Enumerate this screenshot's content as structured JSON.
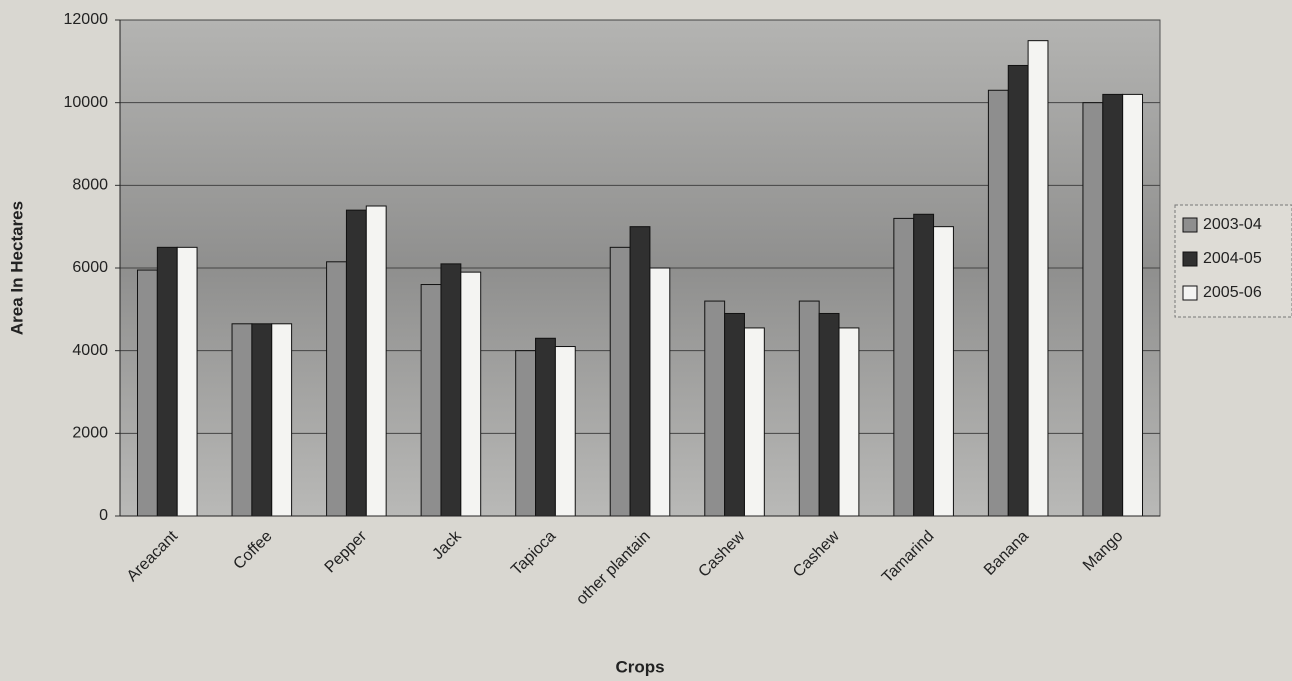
{
  "chart_data": {
    "type": "bar",
    "categories": [
      "Areacant",
      "Coffee",
      "Pepper",
      "Jack",
      "Tapioca",
      "other plantain",
      "Cashew",
      "Cashew",
      "Tamarind",
      "Banana",
      "Mango"
    ],
    "series": [
      {
        "name": "2003-04",
        "color": "#8e8e8e",
        "values": [
          5950,
          4650,
          6150,
          5600,
          4000,
          6500,
          5200,
          5200,
          7200,
          10300,
          10000
        ]
      },
      {
        "name": "2004-05",
        "color": "#303030",
        "values": [
          6500,
          4650,
          7400,
          6100,
          4300,
          7000,
          4900,
          4900,
          7300,
          10900,
          10200
        ]
      },
      {
        "name": "2005-06",
        "color": "#f4f4f2",
        "values": [
          6500,
          4650,
          7500,
          5900,
          4100,
          6000,
          4550,
          4550,
          7000,
          11500,
          10200
        ]
      }
    ],
    "xlabel": "Crops",
    "ylabel": "Area In Hectares",
    "ylim": [
      0,
      12000
    ],
    "yticks": [
      0,
      2000,
      4000,
      6000,
      8000,
      10000,
      12000
    ],
    "grid": true,
    "legend": "right"
  }
}
